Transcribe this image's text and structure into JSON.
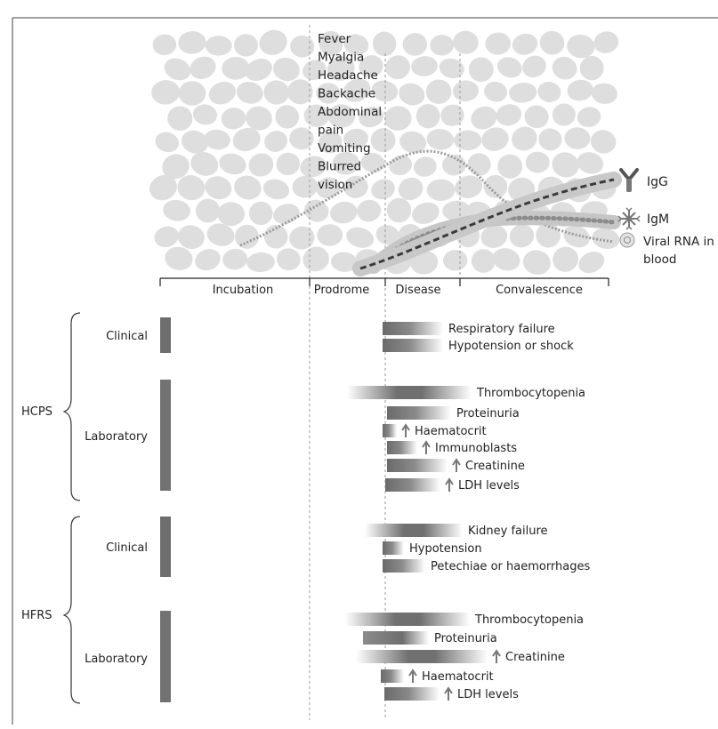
{
  "symptoms": [
    "Fever",
    "Myalgia",
    "Headache",
    "Backache",
    "Abdominal",
    "pain",
    "Vomiting",
    "Blurred",
    "vision"
  ],
  "legend": [
    {
      "icon": "antibody-icon",
      "label": "IgG"
    },
    {
      "icon": "pentameric-antibody-icon",
      "label": "IgM"
    },
    {
      "icon": "virus-particle-icon",
      "label": "Viral RNA in",
      "label2": "blood"
    }
  ],
  "phases": [
    "Incubation",
    "Prodrome",
    "Disease",
    "Convalescence"
  ],
  "syndromes": [
    {
      "name": "HCPS",
      "groups": [
        {
          "name": "Clinical",
          "items": [
            {
              "label": "Respiratory failure",
              "arrow": false
            },
            {
              "label": "Hypotension or shock",
              "arrow": false
            }
          ]
        },
        {
          "name": "Laboratory",
          "items": [
            {
              "label": "Thrombocytopenia",
              "arrow": false
            },
            {
              "label": "Proteinuria",
              "arrow": false
            },
            {
              "label": "Haematocrit",
              "arrow": true
            },
            {
              "label": "Immunoblasts",
              "arrow": true
            },
            {
              "label": "Creatinine",
              "arrow": true
            },
            {
              "label": "LDH levels",
              "arrow": true
            }
          ]
        }
      ]
    },
    {
      "name": "HFRS",
      "groups": [
        {
          "name": "Clinical",
          "items": [
            {
              "label": "Kidney failure",
              "arrow": false
            },
            {
              "label": "Hypotension",
              "arrow": false
            },
            {
              "label": "Petechiae or haemorrhages",
              "arrow": false
            }
          ]
        },
        {
          "name": "Laboratory",
          "items": [
            {
              "label": "Thrombocytopenia",
              "arrow": false
            },
            {
              "label": "Proteinuria",
              "arrow": false
            },
            {
              "label": "Creatinine",
              "arrow": true
            },
            {
              "label": "Haematocrit",
              "arrow": true
            },
            {
              "label": "LDH levels",
              "arrow": true
            }
          ]
        }
      ]
    }
  ]
}
